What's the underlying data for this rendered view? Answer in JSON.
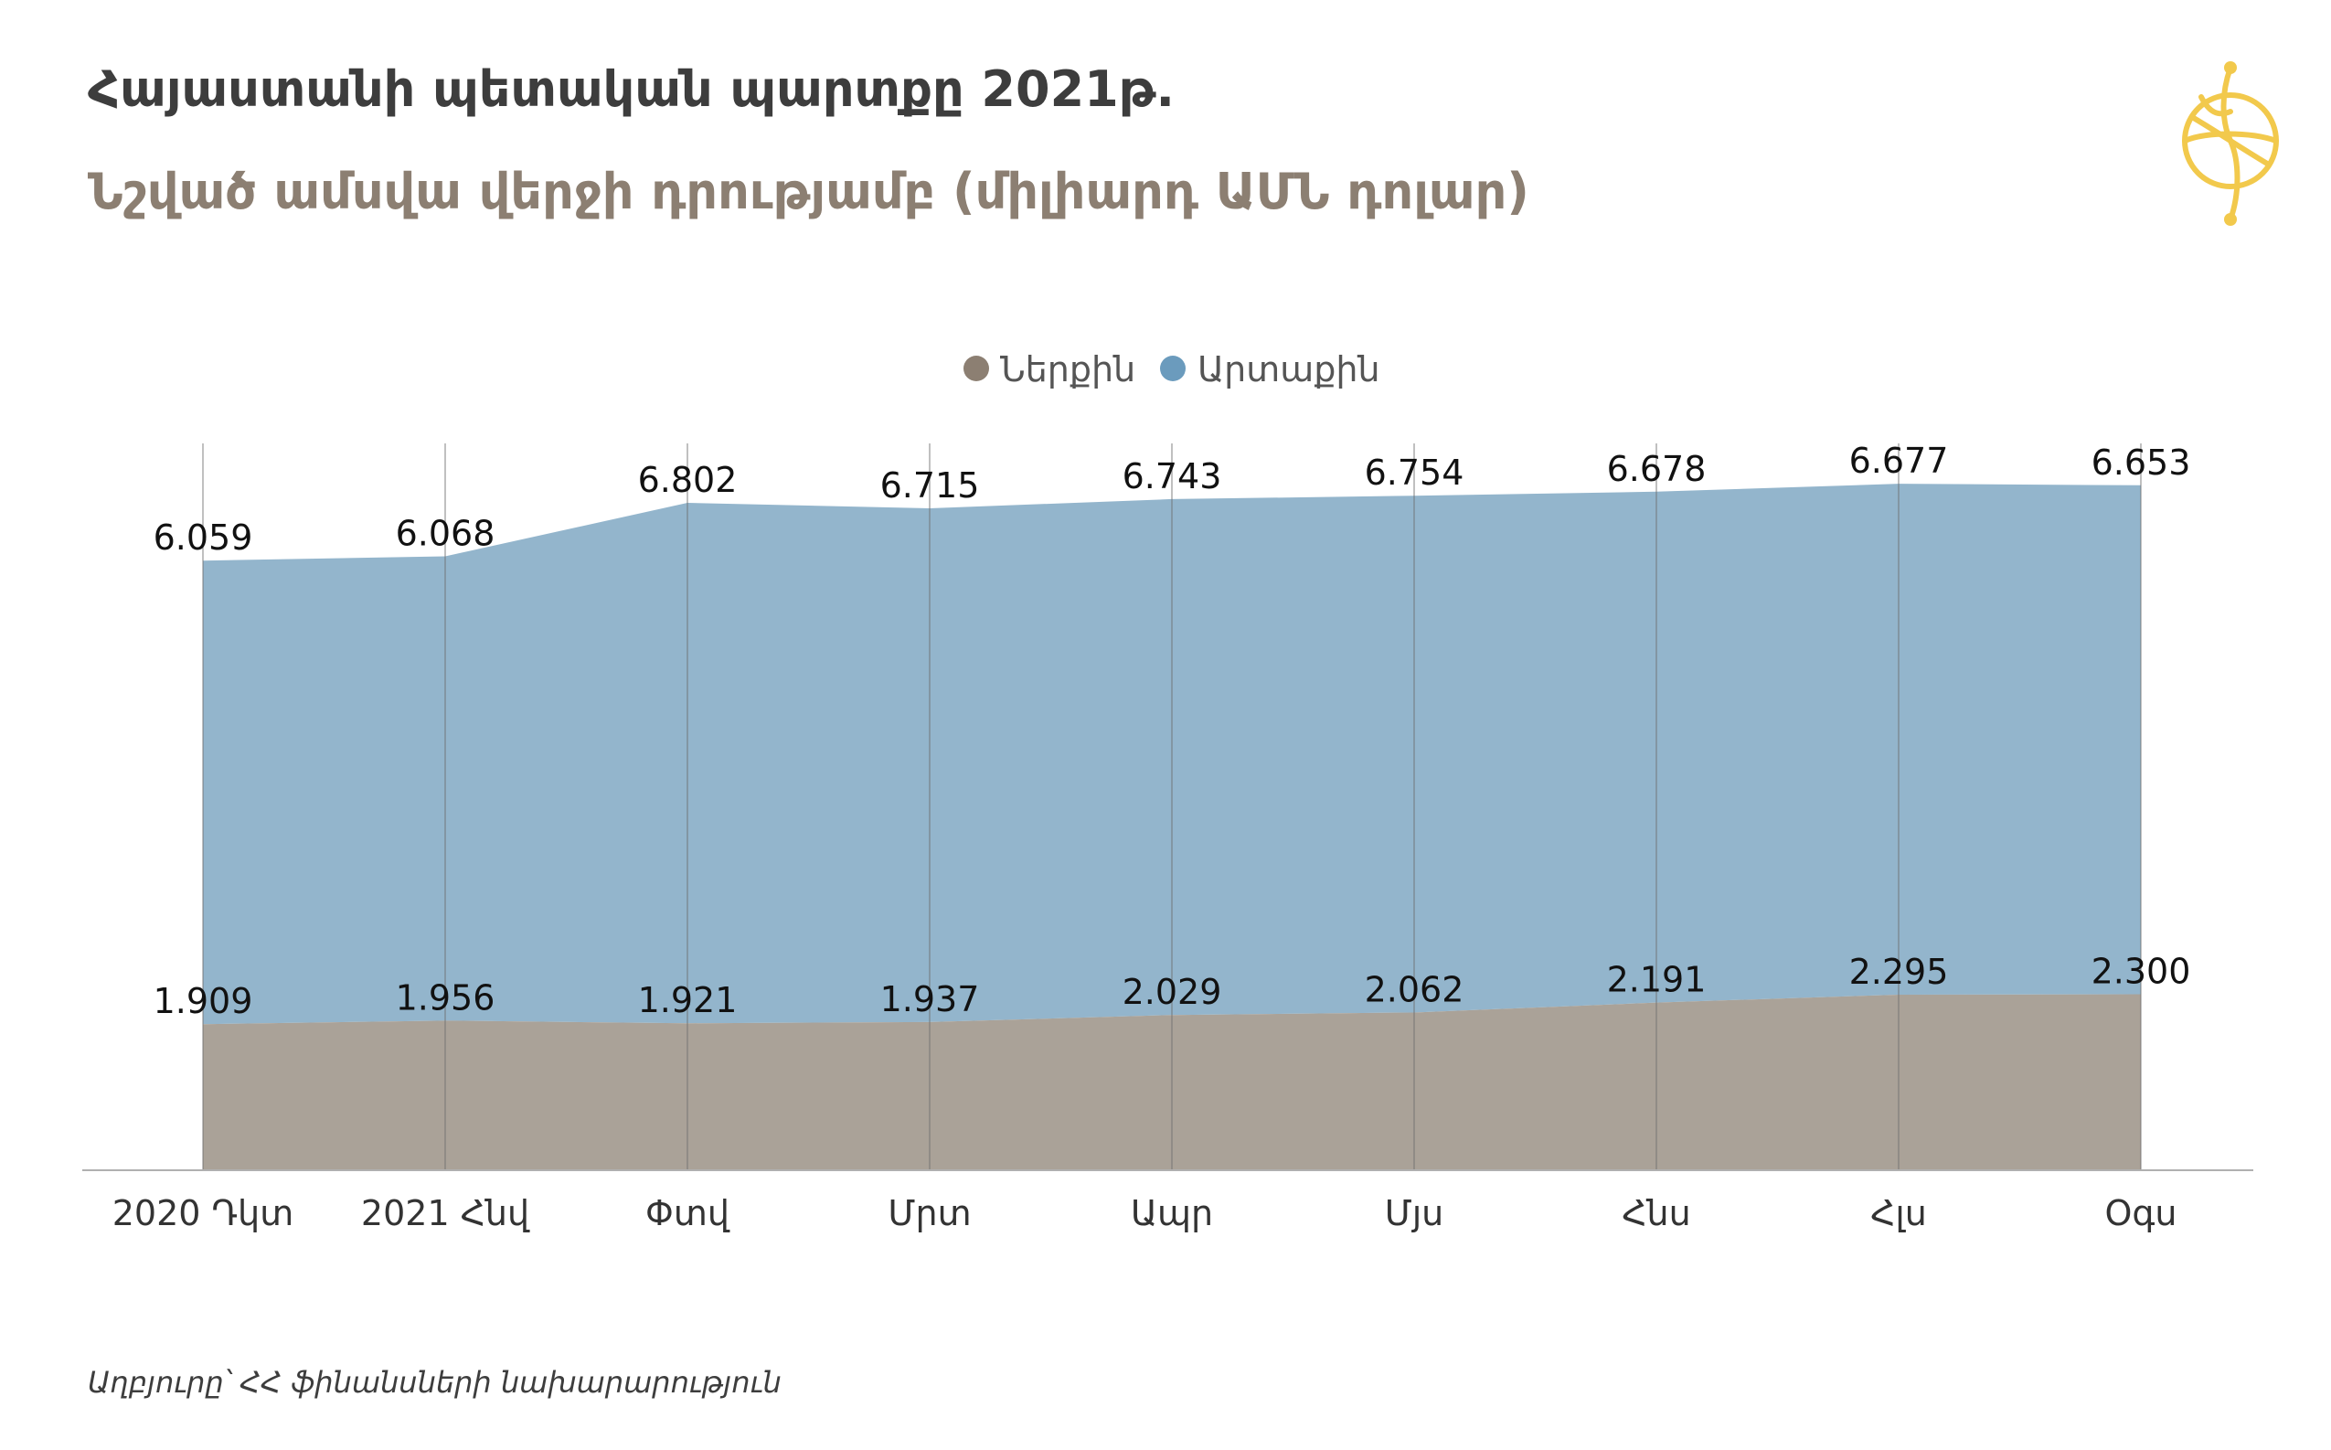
{
  "header": {
    "title": "Հայաստանի պետական պարտքը 2021թ.",
    "subtitle": "Նշված ամսվա վերջի դրությամբ (միլիարդ ԱՄՆ դոլար)"
  },
  "source": "Աղբյուրը՝ ՀՀ ֆինանսների նախարարություն",
  "colors": {
    "domestic": "#aaa298",
    "external": "#93b5cc",
    "legend_domestic": "#8c7f72",
    "legend_external": "#6b9bbd",
    "logo": "#f2c94c"
  },
  "chart_data": {
    "type": "area",
    "stacked": true,
    "categories": [
      "2020 Դկտ",
      "2021 Հնվ",
      "Փտվ",
      "Մրտ",
      "Ապր",
      "Մյս",
      "Հնս",
      "Հլս",
      "Օգս"
    ],
    "series": [
      {
        "name": "Ներքին",
        "color": "#aaa298",
        "values": [
          1.909,
          1.956,
          1.921,
          1.937,
          2.029,
          2.062,
          2.191,
          2.295,
          2.3
        ]
      },
      {
        "name": "Արտաքին",
        "color": "#93b5cc",
        "values": [
          6.059,
          6.068,
          6.802,
          6.715,
          6.743,
          6.754,
          6.678,
          6.677,
          6.653
        ]
      }
    ],
    "data_labels": {
      "Ներքին": [
        "1.909",
        "1.956",
        "1.921",
        "1.937",
        "2.029",
        "2.062",
        "2.191",
        "2.295",
        "2.300"
      ],
      "Արտաքին": [
        "6.059",
        "6.068",
        "6.802",
        "6.715",
        "6.743",
        "6.754",
        "6.678",
        "6.677",
        "6.653"
      ]
    },
    "ylim": [
      0,
      9.5
    ],
    "grid": "vertical",
    "legend": "top-center",
    "xlabel": "",
    "ylabel": ""
  }
}
